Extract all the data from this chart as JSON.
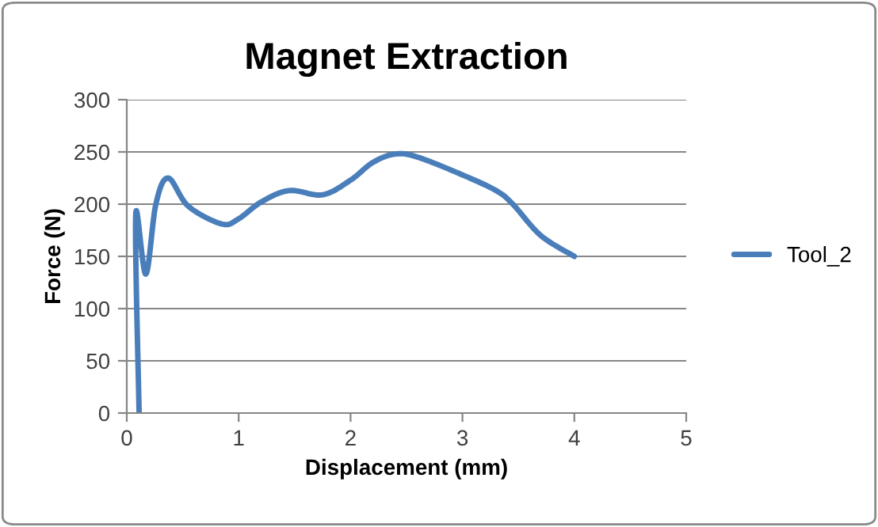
{
  "chart_data": {
    "type": "line",
    "title": "Magnet Extraction",
    "xlabel": "Displacement (mm)",
    "ylabel": "Force (N)",
    "series": [
      {
        "name": "Tool_2",
        "color": "#4a7ebb",
        "x": [
          0.11,
          0.08,
          0.17,
          0.26,
          0.37,
          0.55,
          0.85,
          1.0,
          1.2,
          1.45,
          1.75,
          2.0,
          2.2,
          2.4,
          2.6,
          3.0,
          3.3,
          3.45,
          3.7,
          4.0
        ],
        "values": [
          0,
          190,
          133,
          200,
          225,
          198,
          181,
          186,
          202,
          213,
          209,
          223,
          240,
          248,
          245,
          228,
          213,
          200,
          170,
          150
        ]
      }
    ],
    "xlim": [
      0,
      5
    ],
    "xticks": [
      0,
      1,
      2,
      3,
      4,
      5
    ],
    "ylim": [
      0,
      300
    ],
    "yticks": [
      0,
      50,
      100,
      150,
      200,
      250,
      300
    ],
    "grid": "y",
    "legend": "right",
    "marker": "none",
    "line_style": "solid"
  }
}
